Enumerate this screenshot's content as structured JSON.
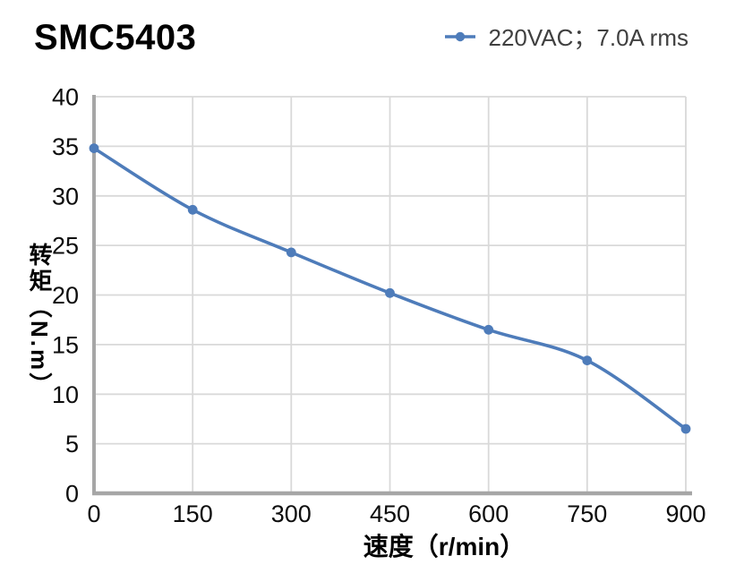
{
  "title": "SMC5403",
  "legend": {
    "label": "220VAC；7.0A rms",
    "marker_icon": "line-with-circle-marker",
    "marker_color": "#4E7CBA"
  },
  "chart_data": {
    "type": "line",
    "title": "SMC5403",
    "x": [
      0,
      150,
      300,
      450,
      600,
      750,
      900
    ],
    "series": [
      {
        "name": "220VAC；7.0A rms",
        "color": "#4E7CBA",
        "values": [
          34.8,
          28.6,
          24.3,
          20.2,
          16.5,
          13.4,
          6.5
        ]
      }
    ],
    "xlabel": "速度（r/min）",
    "ylabel": "转矩（N.m）",
    "xlim": [
      0,
      900
    ],
    "ylim": [
      0,
      40
    ],
    "x_ticks": [
      0,
      150,
      300,
      450,
      600,
      750,
      900
    ],
    "y_ticks": [
      0,
      5,
      10,
      15,
      20,
      25,
      30,
      35,
      40
    ],
    "grid": true,
    "smooth": true,
    "legend_position": "top-right",
    "colors": {
      "line": "#4E7CBA",
      "grid": "#D9D9D9",
      "axis": "#A6A6A6",
      "tick_label": "#0d0d0d",
      "axis_title": "#000000",
      "legend_text": "#404040",
      "title_text": "#000000",
      "background": "#FFFFFF"
    }
  }
}
